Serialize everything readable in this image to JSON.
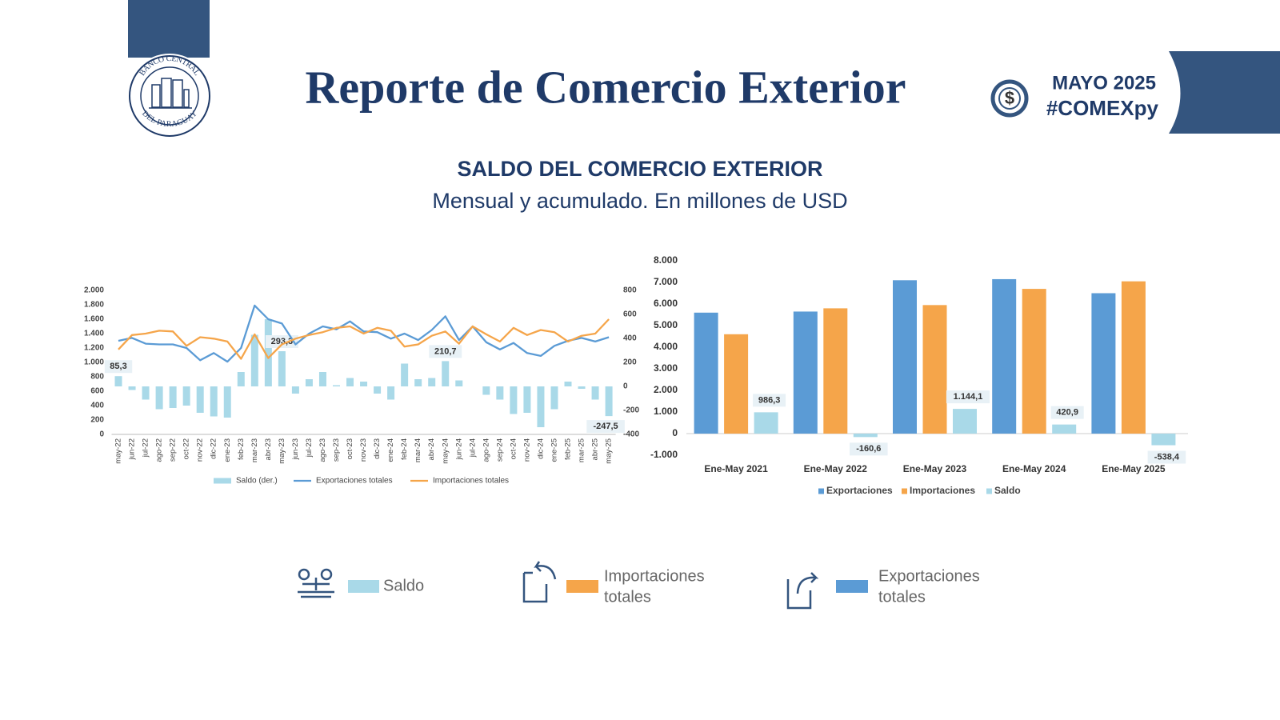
{
  "header": {
    "title": "Reporte de Comercio Exterior",
    "logo_top": "BANCO CENTRAL",
    "logo_bottom": "DEL PARAGUAY",
    "period": "MAYO 2025",
    "hashtag": "#COMEXpy"
  },
  "section": {
    "title": "SALDO DEL COMERCIO EXTERIOR",
    "subtitle": "Mensual y acumulado. En millones de USD"
  },
  "chart_data": [
    {
      "type": "combo",
      "categories": [
        "may-22",
        "jun-22",
        "jul-22",
        "ago-22",
        "sep-22",
        "oct-22",
        "nov-22",
        "dic-22",
        "ene-23",
        "feb-23",
        "mar-23",
        "abr-23",
        "may-23",
        "jun-23",
        "jul-23",
        "ago-23",
        "sep-23",
        "oct-23",
        "nov-23",
        "dic-23",
        "ene-24",
        "feb-24",
        "mar-24",
        "abr-24",
        "may-24",
        "jun-24",
        "jul-24",
        "ago-24",
        "sep-24",
        "oct-24",
        "nov-24",
        "dic-24",
        "ene-25",
        "feb-25",
        "mar-25",
        "abr-25",
        "may-25"
      ],
      "series": [
        {
          "name": "Saldo (der.)",
          "type": "bar",
          "axis": "y2",
          "color": "#a9d9e8",
          "values": [
            85.3,
            -30,
            -110,
            -190,
            -180,
            -160,
            -220,
            -250,
            -260,
            120,
            430,
            560,
            293.3,
            -60,
            60,
            120,
            10,
            70,
            40,
            -60,
            -110,
            190,
            60,
            70,
            210.7,
            50,
            0,
            -70,
            -110,
            -230,
            -220,
            -340,
            -190,
            40,
            -20,
            -110,
            -247.5
          ],
          "value_labels": [
            "85,3",
            null,
            null,
            null,
            null,
            null,
            null,
            null,
            null,
            null,
            null,
            null,
            "293,3",
            null,
            null,
            null,
            null,
            null,
            null,
            null,
            null,
            null,
            null,
            null,
            "210,7",
            null,
            null,
            null,
            null,
            null,
            null,
            null,
            null,
            null,
            null,
            null,
            "-247,5"
          ]
        },
        {
          "name": "Exportaciones totales",
          "type": "line",
          "color": "#5b9bd5",
          "values": [
            1300,
            1340,
            1260,
            1250,
            1250,
            1200,
            1030,
            1130,
            1010,
            1200,
            1790,
            1600,
            1540,
            1250,
            1400,
            1500,
            1460,
            1570,
            1430,
            1420,
            1330,
            1400,
            1310,
            1450,
            1640,
            1310,
            1500,
            1280,
            1180,
            1270,
            1130,
            1090,
            1230,
            1300,
            1340,
            1290,
            1350
          ]
        },
        {
          "name": "Importaciones totales",
          "type": "line",
          "color": "#f5a54a",
          "values": [
            1180,
            1380,
            1400,
            1440,
            1430,
            1230,
            1350,
            1330,
            1290,
            1050,
            1390,
            1060,
            1250,
            1330,
            1380,
            1420,
            1480,
            1500,
            1400,
            1480,
            1440,
            1220,
            1250,
            1370,
            1430,
            1260,
            1500,
            1390,
            1290,
            1480,
            1380,
            1450,
            1420,
            1290,
            1370,
            1400,
            1600
          ]
        }
      ],
      "ylim": [
        0,
        2000
      ],
      "yticks": [
        0,
        200,
        400,
        600,
        800,
        {
          "value": 1000,
          "label": "1.000"
        },
        {
          "value": 1200,
          "label": "1.200"
        },
        {
          "value": 1400,
          "label": "1.400"
        },
        {
          "value": 1600,
          "label": "1.600"
        },
        {
          "value": 1800,
          "label": "1.800"
        },
        {
          "value": 2000,
          "label": "2.000"
        }
      ],
      "y2lim": [
        -400,
        800
      ],
      "y2ticks": [
        -400,
        -200,
        0,
        200,
        400,
        600,
        800
      ],
      "grid": false,
      "legend": "bottom"
    },
    {
      "type": "bar",
      "categories": [
        "Ene-May 2021",
        "Ene-May 2022",
        "Ene-May 2023",
        "Ene-May 2024",
        "Ene-May 2025"
      ],
      "series": [
        {
          "name": "Exportaciones",
          "color": "#5b9bd5",
          "values": [
            5600,
            5650,
            7100,
            7150,
            6500
          ]
        },
        {
          "name": "Importaciones",
          "color": "#f5a54a",
          "values": [
            4600,
            5800,
            5950,
            6700,
            7050
          ]
        },
        {
          "name": "Saldo",
          "color": "#a9d9e8",
          "values": [
            986.3,
            -160.6,
            1144.1,
            420.9,
            -538.4
          ],
          "value_labels": [
            "986,3",
            "-160,6",
            "1.144,1",
            "420,9",
            "-538,4"
          ]
        }
      ],
      "ylim": [
        -1000,
        8000
      ],
      "yticks": [
        {
          "value": -1000,
          "label": "-1.000"
        },
        0,
        {
          "value": 1000,
          "label": "1.000"
        },
        {
          "value": 2000,
          "label": "2.000"
        },
        {
          "value": 3000,
          "label": "3.000"
        },
        {
          "value": 4000,
          "label": "4.000"
        },
        {
          "value": 5000,
          "label": "5.000"
        },
        {
          "value": 6000,
          "label": "6.000"
        },
        {
          "value": 7000,
          "label": "7.000"
        },
        {
          "value": 8000,
          "label": "8.000"
        }
      ],
      "grid": false,
      "legend": "bottom"
    }
  ],
  "legend_icons": [
    {
      "lines": [
        "Saldo"
      ]
    },
    {
      "lines": [
        "Importaciones",
        "totales"
      ]
    },
    {
      "lines": [
        "Exportaciones",
        "totales"
      ]
    }
  ]
}
